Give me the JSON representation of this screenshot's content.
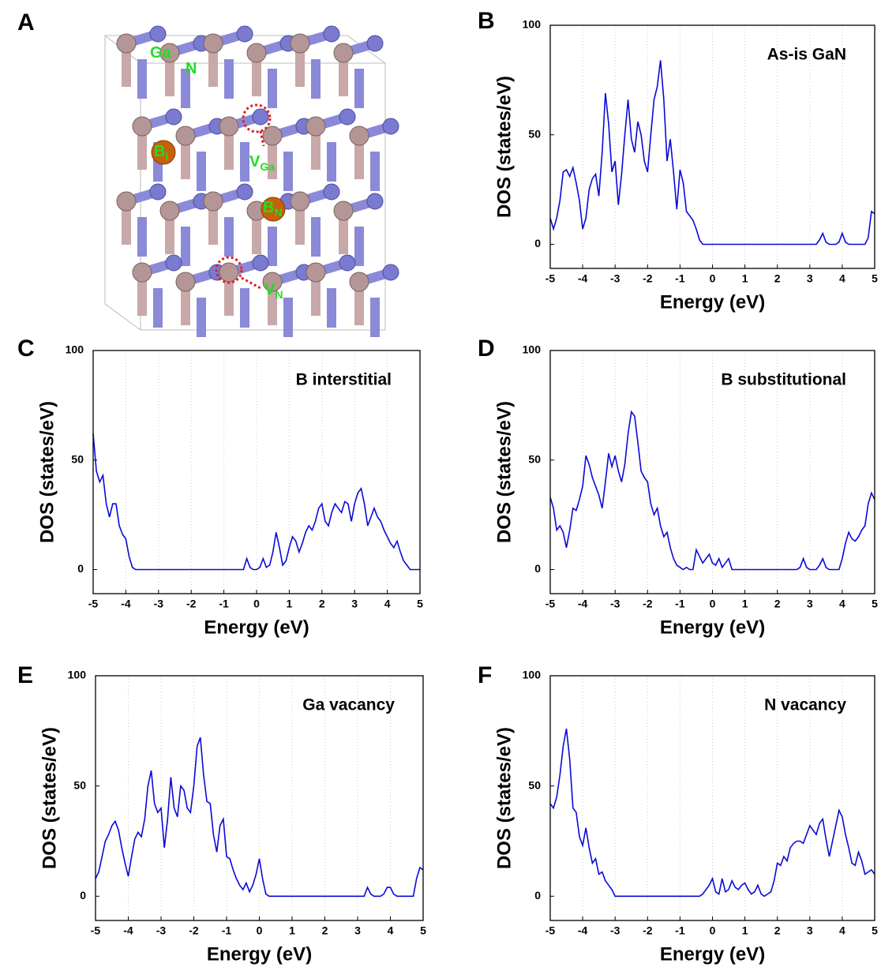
{
  "structure": {
    "panel": "A",
    "labels": [
      {
        "text": "Ga"
      },
      {
        "text": "N"
      },
      {
        "text": "B",
        "sub": "i"
      },
      {
        "text": "V",
        "sub": "Ga"
      },
      {
        "text": "B",
        "sub": "N"
      },
      {
        "text": "V",
        "sub": "N"
      }
    ]
  },
  "chart_data": [
    {
      "type": "line",
      "panel": "B",
      "annotation": "As-is GaN",
      "xlabel": "Energy (eV)",
      "ylabel": "DOS (states/eV)",
      "xlim": [
        -5,
        5
      ],
      "xticks": [
        -5,
        -4,
        -3,
        -2,
        -1,
        0,
        1,
        2,
        3,
        4,
        5
      ],
      "ylim": [
        -11,
        100
      ],
      "yticks": [
        0,
        50,
        100
      ],
      "grid": "x",
      "x": [
        -5,
        -4.9,
        -4.8,
        -4.7,
        -4.6,
        -4.5,
        -4.4,
        -4.3,
        -4.2,
        -4.1,
        -4,
        -3.9,
        -3.8,
        -3.7,
        -3.6,
        -3.5,
        -3.4,
        -3.3,
        -3.2,
        -3.1,
        -3,
        -2.9,
        -2.8,
        -2.7,
        -2.6,
        -2.5,
        -2.4,
        -2.3,
        -2.2,
        -2.1,
        -2,
        -1.9,
        -1.8,
        -1.7,
        -1.6,
        -1.5,
        -1.4,
        -1.3,
        -1.2,
        -1.1,
        -1,
        -0.9,
        -0.8,
        -0.7,
        -0.6,
        -0.5,
        -0.4,
        -0.3,
        -0.2,
        -0.1,
        0,
        0.1,
        0.2,
        0.3,
        0.4,
        0.5,
        0.6,
        0.7,
        0.8,
        0.9,
        1,
        1.1,
        1.2,
        1.3,
        1.4,
        1.5,
        1.6,
        1.7,
        1.8,
        1.9,
        2,
        2.1,
        2.2,
        2.3,
        2.4,
        2.5,
        2.6,
        2.7,
        2.8,
        2.9,
        3,
        3.1,
        3.2,
        3.3,
        3.4,
        3.5,
        3.6,
        3.7,
        3.8,
        3.9,
        4,
        4.1,
        4.2,
        4.3,
        4.4,
        4.5,
        4.6,
        4.7,
        4.8,
        4.9,
        5
      ],
      "series": [
        {
          "color": "#0a0ad8",
          "values": [
            12,
            7,
            12,
            20,
            33,
            34,
            31,
            35,
            28,
            20,
            7,
            12,
            25,
            30,
            32,
            22,
            42,
            69,
            55,
            33,
            38,
            18,
            32,
            50,
            66,
            48,
            42,
            56,
            50,
            38,
            33,
            50,
            66,
            72,
            84,
            66,
            38,
            48,
            33,
            16,
            34,
            28,
            15,
            13,
            11,
            7,
            2,
            0,
            0,
            0,
            0,
            0,
            0,
            0,
            0,
            0,
            0,
            0,
            0,
            0,
            0,
            0,
            0,
            0,
            0,
            0,
            0,
            0,
            0,
            0,
            0,
            0,
            0,
            0,
            0,
            0,
            0,
            0,
            0,
            0,
            0,
            0,
            0,
            2,
            5,
            1,
            0,
            0,
            0,
            1,
            5,
            1,
            0,
            0,
            0,
            0,
            0,
            0,
            3,
            15,
            14
          ]
        }
      ]
    },
    {
      "type": "line",
      "panel": "C",
      "annotation": "B interstitial",
      "xlabel": "Energy (eV)",
      "ylabel": "DOS (states/eV)",
      "xlim": [
        -5,
        5
      ],
      "xticks": [
        -5,
        -4,
        -3,
        -2,
        -1,
        0,
        1,
        2,
        3,
        4,
        5
      ],
      "ylim": [
        -11,
        100
      ],
      "yticks": [
        0,
        50,
        100
      ],
      "grid": "x",
      "x": [
        -5,
        -4.9,
        -4.8,
        -4.7,
        -4.6,
        -4.5,
        -4.4,
        -4.3,
        -4.2,
        -4.1,
        -4,
        -3.9,
        -3.8,
        -3.7,
        -3.6,
        -3.5,
        -3.4,
        -3.3,
        -3.2,
        -3.1,
        -3,
        -2.9,
        -2.8,
        -2.7,
        -2.6,
        -2.5,
        -2.4,
        -2.3,
        -2.2,
        -2.1,
        -2,
        -1.9,
        -1.8,
        -1.7,
        -1.6,
        -1.5,
        -1.4,
        -1.3,
        -1.2,
        -1.1,
        -1,
        -0.9,
        -0.8,
        -0.7,
        -0.6,
        -0.5,
        -0.4,
        -0.3,
        -0.2,
        -0.1,
        0,
        0.1,
        0.2,
        0.3,
        0.4,
        0.5,
        0.6,
        0.7,
        0.8,
        0.9,
        1,
        1.1,
        1.2,
        1.3,
        1.4,
        1.5,
        1.6,
        1.7,
        1.8,
        1.9,
        2,
        2.1,
        2.2,
        2.3,
        2.4,
        2.5,
        2.6,
        2.7,
        2.8,
        2.9,
        3,
        3.1,
        3.2,
        3.3,
        3.4,
        3.5,
        3.6,
        3.7,
        3.8,
        3.9,
        4,
        4.1,
        4.2,
        4.3,
        4.4,
        4.5,
        4.6,
        4.7,
        4.8,
        4.9,
        5
      ],
      "series": [
        {
          "color": "#0a0ad8",
          "values": [
            62,
            45,
            40,
            43,
            30,
            24,
            30,
            30,
            20,
            16,
            14,
            6,
            1,
            0,
            0,
            0,
            0,
            0,
            0,
            0,
            0,
            0,
            0,
            0,
            0,
            0,
            0,
            0,
            0,
            0,
            0,
            0,
            0,
            0,
            0,
            0,
            0,
            0,
            0,
            0,
            0,
            0,
            0,
            0,
            0,
            0,
            0,
            5,
            1,
            0,
            0,
            1,
            5,
            1,
            2,
            8,
            17,
            10,
            2,
            4,
            10,
            15,
            13,
            8,
            12,
            17,
            20,
            18,
            22,
            28,
            30,
            22,
            20,
            26,
            30,
            28,
            26,
            31,
            30,
            22,
            30,
            35,
            37,
            30,
            20,
            24,
            28,
            24,
            22,
            18,
            15,
            12,
            10,
            13,
            8,
            4,
            2,
            0,
            0,
            0,
            0
          ]
        }
      ]
    },
    {
      "type": "line",
      "panel": "D",
      "annotation": "B substitutional",
      "xlabel": "Energy (eV)",
      "ylabel": "DOS (states/eV)",
      "xlim": [
        -5,
        5
      ],
      "xticks": [
        -5,
        -4,
        -3,
        -2,
        -1,
        0,
        1,
        2,
        3,
        4,
        5
      ],
      "ylim": [
        -11,
        100
      ],
      "yticks": [
        0,
        50,
        100
      ],
      "grid": "x",
      "x": [
        -5,
        -4.9,
        -4.8,
        -4.7,
        -4.6,
        -4.5,
        -4.4,
        -4.3,
        -4.2,
        -4.1,
        -4,
        -3.9,
        -3.8,
        -3.7,
        -3.6,
        -3.5,
        -3.4,
        -3.3,
        -3.2,
        -3.1,
        -3,
        -2.9,
        -2.8,
        -2.7,
        -2.6,
        -2.5,
        -2.4,
        -2.3,
        -2.2,
        -2.1,
        -2,
        -1.9,
        -1.8,
        -1.7,
        -1.6,
        -1.5,
        -1.4,
        -1.3,
        -1.2,
        -1.1,
        -1,
        -0.9,
        -0.8,
        -0.7,
        -0.6,
        -0.5,
        -0.4,
        -0.3,
        -0.2,
        -0.1,
        0,
        0.1,
        0.2,
        0.3,
        0.4,
        0.5,
        0.6,
        0.7,
        0.8,
        0.9,
        1,
        1.1,
        1.2,
        1.3,
        1.4,
        1.5,
        1.6,
        1.7,
        1.8,
        1.9,
        2,
        2.1,
        2.2,
        2.3,
        2.4,
        2.5,
        2.6,
        2.7,
        2.8,
        2.9,
        3,
        3.1,
        3.2,
        3.3,
        3.4,
        3.5,
        3.6,
        3.7,
        3.8,
        3.9,
        4,
        4.1,
        4.2,
        4.3,
        4.4,
        4.5,
        4.6,
        4.7,
        4.8,
        4.9,
        5
      ],
      "series": [
        {
          "color": "#0a0ad8",
          "values": [
            33,
            28,
            18,
            20,
            17,
            10,
            18,
            28,
            27,
            32,
            38,
            52,
            48,
            42,
            38,
            34,
            28,
            40,
            53,
            47,
            52,
            45,
            40,
            48,
            62,
            72,
            70,
            58,
            45,
            42,
            40,
            30,
            25,
            28,
            20,
            15,
            17,
            10,
            5,
            2,
            1,
            0,
            1,
            0,
            0,
            9,
            6,
            3,
            5,
            7,
            3,
            2,
            5,
            1,
            3,
            5,
            0,
            0,
            0,
            0,
            0,
            0,
            0,
            0,
            0,
            0,
            0,
            0,
            0,
            0,
            0,
            0,
            0,
            0,
            0,
            0,
            0,
            1,
            5,
            1,
            0,
            0,
            0,
            2,
            5,
            1,
            0,
            0,
            0,
            0,
            5,
            12,
            17,
            14,
            13,
            15,
            18,
            20,
            30,
            35,
            32
          ]
        }
      ]
    },
    {
      "type": "line",
      "panel": "E",
      "annotation": "Ga vacancy",
      "xlabel": "Energy (eV)",
      "ylabel": "DOS (states/eV)",
      "xlim": [
        -5,
        5
      ],
      "xticks": [
        -5,
        -4,
        -3,
        -2,
        -1,
        0,
        1,
        2,
        3,
        4,
        5
      ],
      "ylim": [
        -11,
        100
      ],
      "yticks": [
        0,
        50,
        100
      ],
      "grid": "x",
      "x": [
        -5,
        -4.9,
        -4.8,
        -4.7,
        -4.6,
        -4.5,
        -4.4,
        -4.3,
        -4.2,
        -4.1,
        -4,
        -3.9,
        -3.8,
        -3.7,
        -3.6,
        -3.5,
        -3.4,
        -3.3,
        -3.2,
        -3.1,
        -3,
        -2.9,
        -2.8,
        -2.7,
        -2.6,
        -2.5,
        -2.4,
        -2.3,
        -2.2,
        -2.1,
        -2,
        -1.9,
        -1.8,
        -1.7,
        -1.6,
        -1.5,
        -1.4,
        -1.3,
        -1.2,
        -1.1,
        -1,
        -0.9,
        -0.8,
        -0.7,
        -0.6,
        -0.5,
        -0.4,
        -0.3,
        -0.2,
        -0.1,
        0,
        0.1,
        0.2,
        0.3,
        0.4,
        0.5,
        0.6,
        0.7,
        0.8,
        0.9,
        1,
        1.1,
        1.2,
        1.3,
        1.4,
        1.5,
        1.6,
        1.7,
        1.8,
        1.9,
        2,
        2.1,
        2.2,
        2.3,
        2.4,
        2.5,
        2.6,
        2.7,
        2.8,
        2.9,
        3,
        3.1,
        3.2,
        3.3,
        3.4,
        3.5,
        3.6,
        3.7,
        3.8,
        3.9,
        4,
        4.1,
        4.2,
        4.3,
        4.4,
        4.5,
        4.6,
        4.7,
        4.8,
        4.9,
        5
      ],
      "series": [
        {
          "color": "#0a0ad8",
          "values": [
            8,
            11,
            18,
            25,
            28,
            32,
            34,
            30,
            22,
            15,
            9,
            18,
            26,
            29,
            27,
            35,
            50,
            57,
            42,
            38,
            40,
            22,
            35,
            54,
            40,
            36,
            50,
            48,
            40,
            38,
            50,
            68,
            72,
            55,
            43,
            42,
            28,
            20,
            32,
            35,
            18,
            17,
            12,
            8,
            5,
            3,
            6,
            2,
            5,
            10,
            17,
            8,
            1,
            0,
            0,
            0,
            0,
            0,
            0,
            0,
            0,
            0,
            0,
            0,
            0,
            0,
            0,
            0,
            0,
            0,
            0,
            0,
            0,
            0,
            0,
            0,
            0,
            0,
            0,
            0,
            0,
            0,
            0,
            4,
            1,
            0,
            0,
            0,
            1,
            4,
            4,
            1,
            0,
            0,
            0,
            0,
            0,
            0,
            8,
            13,
            12
          ]
        }
      ]
    },
    {
      "type": "line",
      "panel": "F",
      "annotation": "N vacancy",
      "xlabel": "Energy (eV)",
      "ylabel": "DOS (states/eV)",
      "xlim": [
        -5,
        5
      ],
      "xticks": [
        -5,
        -4,
        -3,
        -2,
        -1,
        0,
        1,
        2,
        3,
        4,
        5
      ],
      "ylim": [
        -11,
        100
      ],
      "yticks": [
        0,
        50,
        100
      ],
      "grid": "x",
      "x": [
        -5,
        -4.9,
        -4.8,
        -4.7,
        -4.6,
        -4.5,
        -4.4,
        -4.3,
        -4.2,
        -4.1,
        -4,
        -3.9,
        -3.8,
        -3.7,
        -3.6,
        -3.5,
        -3.4,
        -3.3,
        -3.2,
        -3.1,
        -3,
        -2.9,
        -2.8,
        -2.7,
        -2.6,
        -2.5,
        -2.4,
        -2.3,
        -2.2,
        -2.1,
        -2,
        -1.9,
        -1.8,
        -1.7,
        -1.6,
        -1.5,
        -1.4,
        -1.3,
        -1.2,
        -1.1,
        -1,
        -0.9,
        -0.8,
        -0.7,
        -0.6,
        -0.5,
        -0.4,
        -0.3,
        -0.2,
        -0.1,
        0,
        0.1,
        0.2,
        0.3,
        0.4,
        0.5,
        0.6,
        0.7,
        0.8,
        0.9,
        1,
        1.1,
        1.2,
        1.3,
        1.4,
        1.5,
        1.6,
        1.7,
        1.8,
        1.9,
        2,
        2.1,
        2.2,
        2.3,
        2.4,
        2.5,
        2.6,
        2.7,
        2.8,
        2.9,
        3,
        3.1,
        3.2,
        3.3,
        3.4,
        3.5,
        3.6,
        3.7,
        3.8,
        3.9,
        4,
        4.1,
        4.2,
        4.3,
        4.4,
        4.5,
        4.6,
        4.7,
        4.8,
        4.9,
        5
      ],
      "series": [
        {
          "color": "#0a0ad8",
          "values": [
            42,
            40,
            45,
            55,
            68,
            76,
            62,
            40,
            38,
            27,
            23,
            31,
            22,
            15,
            17,
            10,
            11,
            7,
            5,
            3,
            0,
            0,
            0,
            0,
            0,
            0,
            0,
            0,
            0,
            0,
            0,
            0,
            0,
            0,
            0,
            0,
            0,
            0,
            0,
            0,
            0,
            0,
            0,
            0,
            0,
            0,
            0,
            1,
            3,
            5,
            8,
            2,
            1,
            8,
            2,
            3,
            7,
            4,
            3,
            5,
            6,
            3,
            1,
            2,
            5,
            1,
            0,
            1,
            2,
            7,
            15,
            14,
            18,
            16,
            22,
            24,
            25,
            25,
            24,
            28,
            32,
            30,
            28,
            33,
            35,
            26,
            18,
            25,
            32,
            39,
            36,
            28,
            22,
            15,
            14,
            20,
            16,
            10,
            11,
            12,
            10
          ]
        }
      ]
    }
  ]
}
